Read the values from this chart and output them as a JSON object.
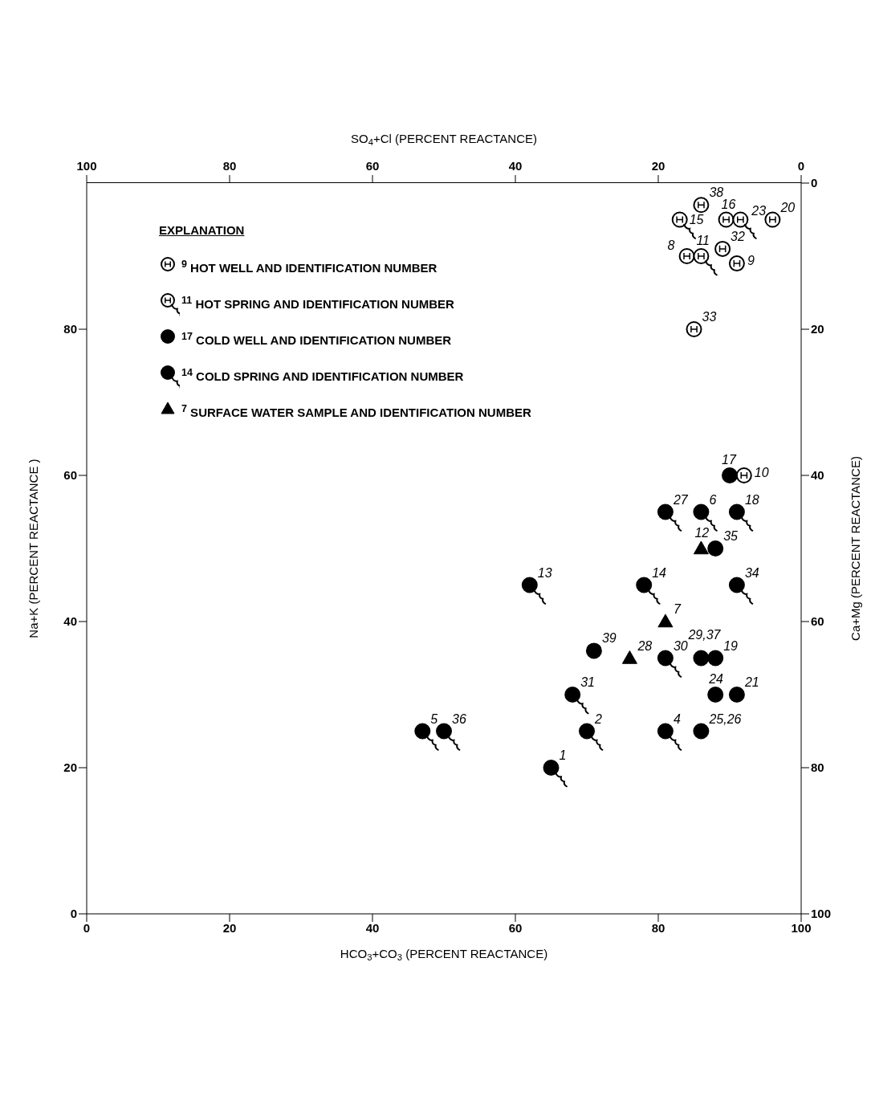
{
  "chart_data": {
    "type": "scatter",
    "xlabel": "HCO$_{3}$+CO$_{3}$ (PERCENT REACTANCE)",
    "ylabel": "Na+K (PERCENT REACTANCE )",
    "x2label": "SO$_{4}$+Cl (PERCENT REACTANCE)",
    "y2label": "Ca+Mg (PERCENT REACTANCE)",
    "xlim": [
      0,
      100
    ],
    "xticks": [
      0,
      20,
      40,
      60,
      80,
      100
    ],
    "x2lim": [
      100,
      0
    ],
    "x2ticks": [
      100,
      80,
      60,
      40,
      20,
      0
    ],
    "ylim": [
      0,
      100
    ],
    "yticks": [
      0,
      20,
      40,
      60,
      80
    ],
    "y2lim": [
      100,
      0
    ],
    "y2ticks": [
      100,
      80,
      60,
      40,
      20,
      0
    ],
    "legend": "top left",
    "legend_title": "EXPLANATION",
    "series": [
      {
        "name": "$^{9}$ HOT WELL AND IDENTIFICATION NUMBER",
        "color": "#000000",
        "marker": "circle",
        "x": [
          86,
          89.5,
          96,
          89,
          91,
          84,
          85,
          92
        ],
        "values": [
          97,
          95,
          95,
          91,
          89,
          90,
          80,
          60
        ]
      },
      {
        "name": "$^{11}$ HOT SPRING AND IDENTIFICATION NUMBER",
        "color": "#000000",
        "marker": "circle",
        "x": [
          83,
          91.5,
          86
        ],
        "values": [
          95,
          95,
          90
        ]
      },
      {
        "name": "$^{17}$ COLD WELL AND IDENTIFICATION NUMBER",
        "color": "#000000",
        "marker": "circle",
        "x": [
          90,
          88,
          71,
          86,
          88,
          88,
          91,
          86
        ],
        "values": [
          60,
          50,
          36,
          35,
          35,
          30,
          30,
          25
        ]
      },
      {
        "name": "$^{14}$ COLD SPRING AND IDENTIFICATION NUMBER",
        "color": "#000000",
        "marker": "circle",
        "x": [
          81,
          86,
          91,
          62,
          78,
          91,
          81,
          68,
          70,
          81,
          47,
          50,
          65
        ],
        "values": [
          55,
          55,
          55,
          45,
          45,
          45,
          35,
          30,
          25,
          25,
          25,
          25,
          20
        ]
      },
      {
        "name": "$^{7}$ SURFACE WATER SAMPLE AND IDENTIFICATION NUMBER",
        "color": "#000000",
        "marker": "triangle",
        "x": [
          86,
          81,
          76
        ],
        "values": [
          50,
          40,
          35
        ]
      }
    ],
    "annotations": [
      {
        "text": "38",
        "x": 86,
        "y": 97
      },
      {
        "text": "15",
        "x": 83,
        "y": 95
      },
      {
        "text": "16",
        "x": 89.5,
        "y": 95
      },
      {
        "text": "23",
        "x": 91.5,
        "y": 95
      },
      {
        "text": "20",
        "x": 96,
        "y": 95
      },
      {
        "text": "32",
        "x": 89,
        "y": 91
      },
      {
        "text": "9",
        "x": 91,
        "y": 89
      },
      {
        "text": "8",
        "x": 84,
        "y": 90
      },
      {
        "text": "11",
        "x": 86,
        "y": 90
      },
      {
        "text": "33",
        "x": 85,
        "y": 80
      },
      {
        "text": "17",
        "x": 90,
        "y": 60
      },
      {
        "text": "10",
        "x": 92,
        "y": 60
      },
      {
        "text": "27",
        "x": 81,
        "y": 55
      },
      {
        "text": "6",
        "x": 86,
        "y": 55
      },
      {
        "text": "18",
        "x": 91,
        "y": 55
      },
      {
        "text": "12",
        "x": 86,
        "y": 50
      },
      {
        "text": "35",
        "x": 88,
        "y": 50
      },
      {
        "text": "13",
        "x": 62,
        "y": 45
      },
      {
        "text": "14",
        "x": 78,
        "y": 45
      },
      {
        "text": "34",
        "x": 91,
        "y": 45
      },
      {
        "text": "7",
        "x": 81,
        "y": 40
      },
      {
        "text": "39",
        "x": 71,
        "y": 36
      },
      {
        "text": "28",
        "x": 76,
        "y": 35
      },
      {
        "text": "30",
        "x": 81,
        "y": 35
      },
      {
        "text": "29,37",
        "x": 86,
        "y": 35
      },
      {
        "text": "19",
        "x": 88,
        "y": 35
      },
      {
        "text": "31",
        "x": 68,
        "y": 30
      },
      {
        "text": "24",
        "x": 88,
        "y": 30
      },
      {
        "text": "21",
        "x": 91,
        "y": 30
      },
      {
        "text": "2",
        "x": 70,
        "y": 25
      },
      {
        "text": "4",
        "x": 81,
        "y": 25
      },
      {
        "text": "25,26",
        "x": 86,
        "y": 25
      },
      {
        "text": "5",
        "x": 47,
        "y": 25
      },
      {
        "text": "36",
        "x": 50,
        "y": 25
      },
      {
        "text": "1",
        "x": 65,
        "y": 20
      }
    ]
  }
}
